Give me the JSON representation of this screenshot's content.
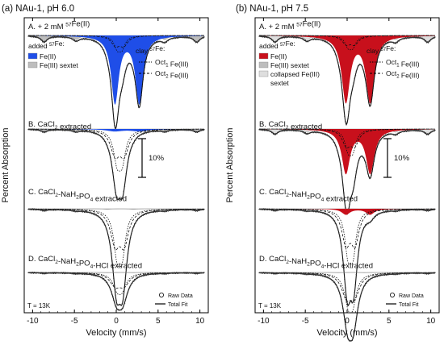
{
  "colors": {
    "fe2_a": "#1f4ee8",
    "fe2_b": "#c8101c",
    "sextet": "#bdbdbd",
    "collapsed": "#dedede",
    "line": "#111111"
  },
  "chart_data": [
    {
      "type": "line",
      "title": "(a) NAu-1, pH 6.0",
      "xlabel": "Velocity (mm/s)",
      "ylabel": "Percent Absorption",
      "xlim": [
        -11,
        11
      ],
      "xticks": [
        "-10",
        "-5",
        "0",
        "5",
        "10"
      ],
      "temperature": "T = 13K",
      "scale_bar": "10%",
      "panels": [
        {
          "label": "A. + 2 mM",
          "label_sup": "57",
          "label_tail": "Fe(II)",
          "doublet": {
            "center": 1.3,
            "split": 2.9,
            "width": 0.55,
            "depth": 92
          },
          "oct": {
            "center": 0.4,
            "split": 0.55,
            "width": 0.45,
            "depth": 28
          },
          "sextet": {
            "isomer": 0.5,
            "hf": 4.8,
            "depth": 9
          },
          "fe2_fill": true
        },
        {
          "label": "B. CaCl",
          "label_sub": "2",
          "label_tail": " extracted",
          "doublet": {
            "center": 1.3,
            "split": 2.9,
            "width": 0.55,
            "depth": 0
          },
          "oct": {
            "center": 0.4,
            "split": 0.6,
            "width": 0.5,
            "depth": 70
          },
          "sextet": {
            "isomer": 0.5,
            "hf": 4.8,
            "depth": 4
          },
          "fe2_fill": true,
          "fe2_small": 3
        },
        {
          "label": "C. CaCl",
          "label_sub": "2",
          "label_tail": "-NaH",
          "label_sub2": "2",
          "label_tail2": "PO",
          "label_sub3": "4",
          "label_tail3": " extracted",
          "doublet": {
            "center": 1.3,
            "split": 2.9,
            "width": 0.55,
            "depth": 0
          },
          "oct": {
            "center": 0.4,
            "split": 0.6,
            "width": 0.5,
            "depth": 96
          },
          "sextet": {
            "isomer": 0.5,
            "hf": 4.8,
            "depth": 2
          },
          "fe2_fill": false
        },
        {
          "label": "D. CaCl",
          "label_sub": "2",
          "label_tail": "-NaH",
          "label_sub2": "2",
          "label_tail2": "PO",
          "label_sub3": "4",
          "label_tail3": "-HCl extracted",
          "doublet": {
            "center": 1.3,
            "split": 2.9,
            "width": 0.55,
            "depth": 0
          },
          "oct": {
            "center": 0.4,
            "split": 0.6,
            "width": 0.6,
            "depth": 34
          },
          "sextet": {
            "isomer": 0.5,
            "hf": 4.8,
            "depth": 1
          },
          "fe2_fill": false
        }
      ],
      "legend": {
        "added_prefix": "added",
        "added_sup": "57",
        "added_tail": "Fe:",
        "items": [
          "Fe(II)",
          "Fe(III) sextet"
        ],
        "clay_prefix": "clay",
        "clay_sup": "57",
        "clay_tail": "Fe:",
        "oct1": "Oct",
        "oct1_sub": "1",
        "oct1_tail": " Fe(III)",
        "oct2": "Oct",
        "oct2_sub": "2",
        "oct2_tail": " Fe(III)",
        "raw": "Raw Data",
        "fit": "Total Fit"
      }
    },
    {
      "type": "line",
      "title": "(b) NAu-1, pH 7.5",
      "xlabel": "Velocity (mm/s)",
      "ylabel": "Percent Absorption",
      "xlim": [
        -11,
        11
      ],
      "xticks": [
        "-10",
        "-5",
        "0",
        "5",
        "10"
      ],
      "temperature": "T = 13K",
      "scale_bar": "10%",
      "panels": [
        {
          "label": "A. + 2 mM",
          "label_sup": "57",
          "label_tail": "Fe(II)",
          "doublet": {
            "center": 1.3,
            "split": 2.9,
            "width": 0.6,
            "depth": 90
          },
          "oct": {
            "center": 0.4,
            "split": 0.55,
            "width": 0.45,
            "depth": 24
          },
          "sextet": {
            "isomer": 0.5,
            "hf": 4.8,
            "depth": 9
          },
          "fe2_fill": true
        },
        {
          "label": "B. CaCl",
          "label_sub": "2",
          "label_tail": " extracted",
          "doublet": {
            "center": 1.3,
            "split": 2.9,
            "width": 0.6,
            "depth": 60
          },
          "oct": {
            "center": 0.4,
            "split": 0.55,
            "width": 0.45,
            "depth": 45
          },
          "sextet": {
            "isomer": 0.5,
            "hf": 4.8,
            "depth": 7
          },
          "fe2_fill": true
        },
        {
          "label": "C. CaCl",
          "label_sub": "2",
          "label_tail": "-NaH",
          "label_sub2": "2",
          "label_tail2": "PO",
          "label_sub3": "4",
          "label_tail3": " extracted",
          "doublet": {
            "center": 1.3,
            "split": 2.9,
            "width": 0.6,
            "depth": 8
          },
          "oct": {
            "center": 0.4,
            "split": 0.6,
            "width": 0.45,
            "depth": 96
          },
          "sextet": {
            "isomer": 0.5,
            "hf": 4.8,
            "depth": 2
          },
          "fe2_fill": true
        },
        {
          "label": "D. CaCl",
          "label_sub": "2",
          "label_tail": "-NaH",
          "label_sub2": "2",
          "label_tail2": "PO",
          "label_sub3": "4",
          "label_tail3": "-HCl extracted",
          "doublet": {
            "center": 1.3,
            "split": 2.9,
            "width": 0.6,
            "depth": 0
          },
          "oct": {
            "center": 0.4,
            "split": 0.55,
            "width": 0.55,
            "depth": 62
          },
          "sextet": {
            "isomer": 0.5,
            "hf": 4.8,
            "depth": 1
          },
          "fe2_fill": false
        }
      ],
      "legend": {
        "added_prefix": "added",
        "added_sup": "57",
        "added_tail": "Fe:",
        "items": [
          "Fe(II)",
          "Fe(III) sextet",
          "collapsed Fe(III)",
          "sextet"
        ],
        "clay_prefix": "clay",
        "clay_sup": "57",
        "clay_tail": "Fe:",
        "oct1": "Oct",
        "oct1_sub": "1",
        "oct1_tail": " Fe(III)",
        "oct2": "Oct",
        "oct2_sub": "2",
        "oct2_tail": " Fe(III)",
        "raw": "Raw Data",
        "fit": "Total Fit"
      }
    }
  ]
}
